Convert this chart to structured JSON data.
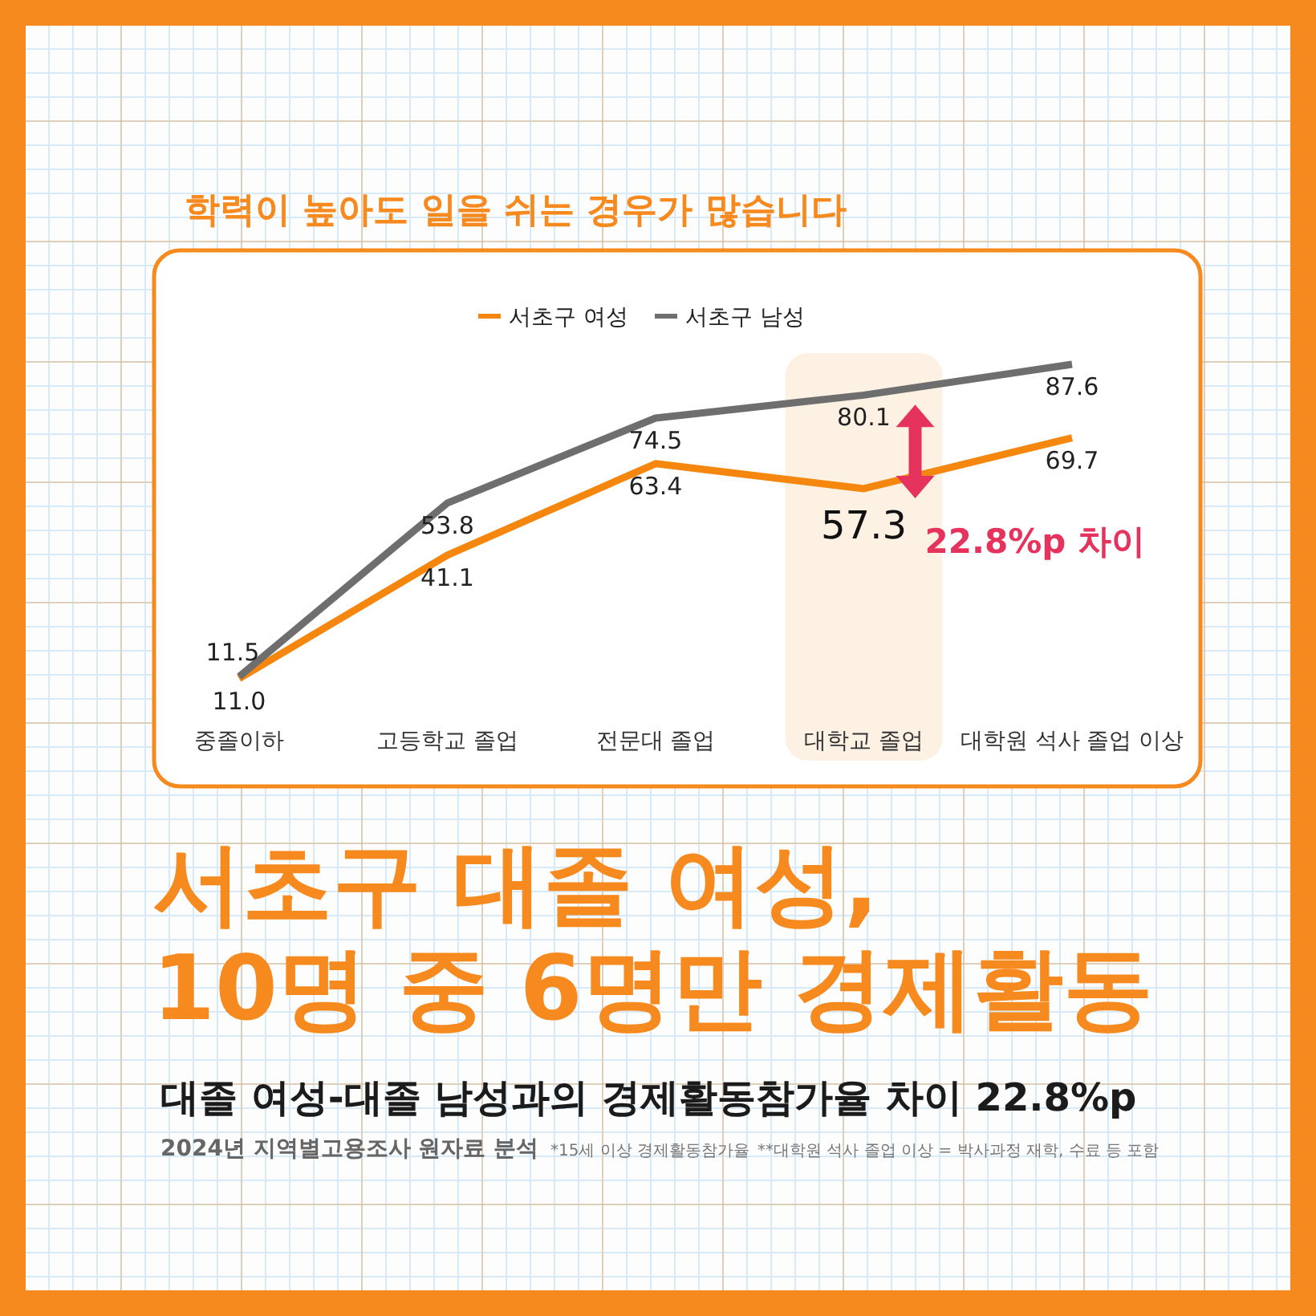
{
  "chart_data": {
    "type": "line",
    "title": "학력이 높아도 일을 쉬는 경우가 많습니다",
    "subtitle": "서초구 대졸 여성,\n10명 중 6명만 경제활동",
    "categories": [
      "중졸이하",
      "고등학교 졸업",
      "전문대 졸업",
      "대학교 졸업",
      "대학원 석사 졸업 이상"
    ],
    "series": [
      {
        "name": "서초구 여성",
        "color": "#f5870f",
        "values": [
          11.0,
          41.1,
          63.4,
          57.3,
          69.7
        ],
        "value_labels": [
          "11.0",
          "41.1",
          "63.4",
          "57.3",
          "69.7"
        ]
      },
      {
        "name": "서초구 남성",
        "color": "#6e6e6e",
        "values": [
          11.5,
          53.8,
          74.5,
          80.1,
          87.6
        ],
        "value_labels": [
          "11.5",
          "53.8",
          "74.5",
          "80.1",
          "87.6"
        ]
      }
    ],
    "legend": "top",
    "bands": [
      {
        "axis": "x",
        "from": "대학교 졸업",
        "to": "대학교 졸업",
        "color": "#fdf1e4"
      }
    ],
    "annotations": [
      "22.8%p 차이",
      "대졸 여성-대졸 남성과의 경제활동참가율 차이 22.8%p",
      "2024년 지역별고용조사 원자료 분석",
      "*15세 이상 경제활동참가율",
      "**대학원 석사 졸업 이상 = 박사과정 재학, 수료 등 포함"
    ]
  }
}
